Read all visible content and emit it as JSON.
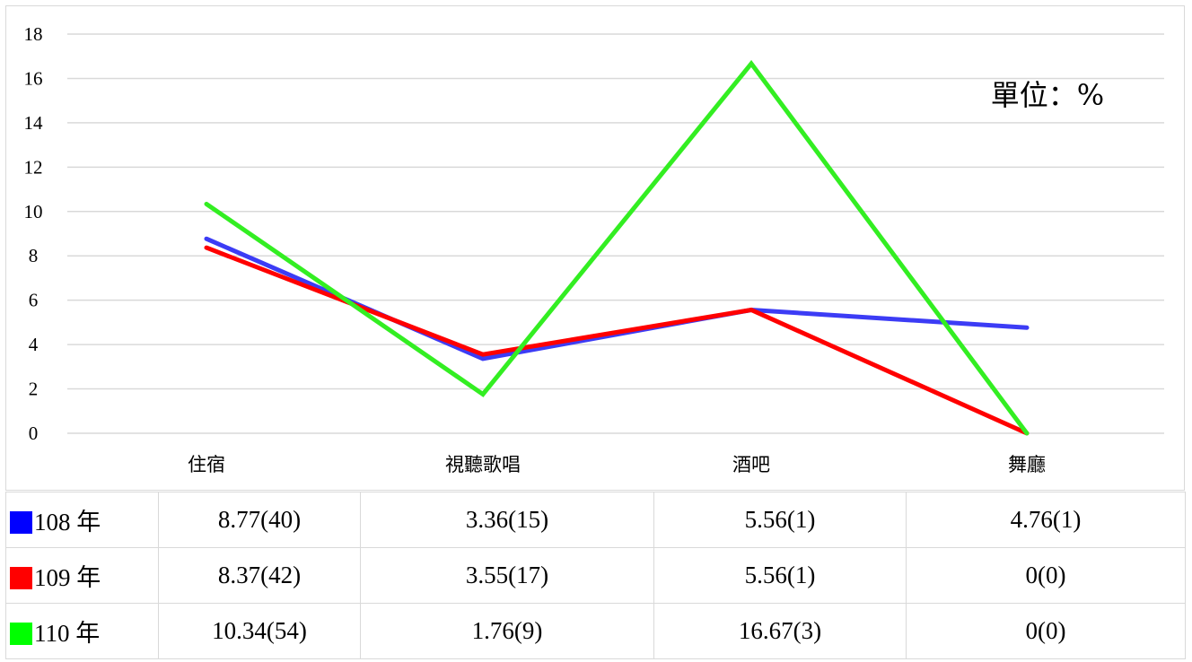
{
  "chart_data": {
    "type": "line",
    "categories": [
      "住宿",
      "視聽歌唱",
      "酒吧",
      "舞廳"
    ],
    "series": [
      {
        "name": "108 年",
        "color": "#3c3cf5",
        "values": [
          8.77,
          3.36,
          5.56,
          4.76
        ],
        "table": [
          "8.77(40)",
          "3.36(15)",
          "5.56(1)",
          "4.76(1)"
        ],
        "swatch": "#0000ff"
      },
      {
        "name": "109 年",
        "color": "#ff0000",
        "values": [
          8.37,
          3.55,
          5.56,
          0
        ],
        "table": [
          "8.37(42)",
          "3.55(17)",
          "5.56(1)",
          "0(0)"
        ],
        "swatch": "#ff0000"
      },
      {
        "name": "110 年",
        "color": "#33ee22",
        "values": [
          10.34,
          1.76,
          16.67,
          0
        ],
        "table": [
          "10.34(54)",
          "1.76(9)",
          "16.67(3)",
          "0(0)"
        ],
        "swatch": "#00ff00"
      }
    ],
    "ylim": [
      0,
      18
    ],
    "yticks": [
      "0",
      "2",
      "4",
      "6",
      "8",
      "10",
      "12",
      "14",
      "16",
      "18"
    ],
    "annotation": "單位：%",
    "grid": true,
    "legend": "bottom data table"
  }
}
